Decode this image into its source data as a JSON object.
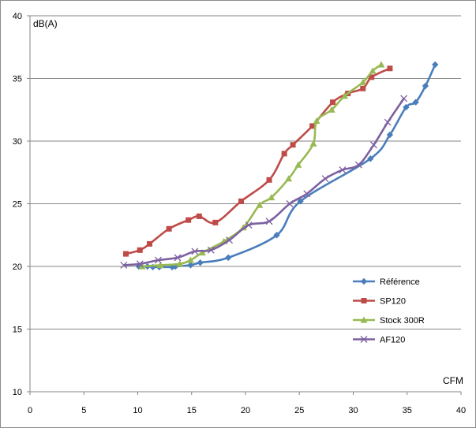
{
  "chart_data": {
    "type": "line",
    "title": "",
    "xlabel": "CFM",
    "ylabel": "dB(A)",
    "xlim": [
      0,
      40
    ],
    "ylim": [
      10,
      40
    ],
    "x_ticks": [
      0,
      5,
      10,
      15,
      20,
      25,
      30,
      35,
      40
    ],
    "y_ticks": [
      10,
      15,
      20,
      25,
      30,
      35,
      40
    ],
    "grid": "horizontal",
    "legend_position": "right",
    "series": [
      {
        "name": "Référence",
        "color": "#4a7ebb",
        "marker": "diamond",
        "points": [
          [
            10.1,
            20.0
          ],
          [
            10.9,
            20.0
          ],
          [
            11.4,
            19.95
          ],
          [
            12.0,
            19.95
          ],
          [
            13.2,
            19.95
          ],
          [
            13.5,
            20.0
          ],
          [
            14.9,
            20.1
          ],
          [
            15.8,
            20.3
          ],
          [
            18.4,
            20.7
          ],
          [
            22.9,
            22.5
          ],
          [
            25.1,
            25.2
          ],
          [
            31.6,
            28.6
          ],
          [
            33.4,
            30.5
          ],
          [
            34.9,
            32.7
          ],
          [
            35.8,
            33.1
          ],
          [
            36.7,
            34.4
          ],
          [
            37.6,
            36.1
          ]
        ]
      },
      {
        "name": "SP120",
        "color": "#be4b48",
        "marker": "square",
        "points": [
          [
            8.9,
            21.0
          ],
          [
            10.2,
            21.3
          ],
          [
            11.1,
            21.8
          ],
          [
            12.9,
            23.0
          ],
          [
            14.7,
            23.7
          ],
          [
            15.7,
            24.0
          ],
          [
            17.2,
            23.5
          ],
          [
            19.6,
            25.2
          ],
          [
            22.2,
            26.9
          ],
          [
            23.6,
            29.0
          ],
          [
            24.4,
            29.7
          ],
          [
            26.2,
            31.2
          ],
          [
            28.1,
            33.1
          ],
          [
            29.5,
            33.8
          ],
          [
            30.9,
            34.2
          ],
          [
            31.7,
            35.1
          ],
          [
            33.4,
            35.8
          ]
        ]
      },
      {
        "name": "Stock 300R",
        "color": "#98b954",
        "marker": "triangle",
        "points": [
          [
            10.4,
            20.0
          ],
          [
            12.1,
            20.1
          ],
          [
            13.9,
            20.2
          ],
          [
            14.9,
            20.5
          ],
          [
            16.0,
            21.1
          ],
          [
            18.0,
            22.0
          ],
          [
            19.8,
            23.1
          ],
          [
            21.3,
            24.9
          ],
          [
            22.4,
            25.5
          ],
          [
            24.0,
            27.0
          ],
          [
            24.9,
            28.1
          ],
          [
            26.3,
            29.8
          ],
          [
            26.6,
            31.6
          ],
          [
            28.0,
            32.5
          ],
          [
            29.2,
            33.6
          ],
          [
            30.9,
            34.7
          ],
          [
            31.8,
            35.6
          ],
          [
            32.6,
            36.1
          ]
        ]
      },
      {
        "name": "AF120",
        "color": "#7d60a0",
        "marker": "x",
        "points": [
          [
            8.7,
            20.1
          ],
          [
            10.2,
            20.2
          ],
          [
            11.9,
            20.5
          ],
          [
            13.7,
            20.7
          ],
          [
            15.3,
            21.2
          ],
          [
            16.8,
            21.3
          ],
          [
            18.5,
            22.1
          ],
          [
            20.3,
            23.3
          ],
          [
            22.2,
            23.6
          ],
          [
            24.1,
            25.0
          ],
          [
            25.7,
            25.8
          ],
          [
            27.4,
            27.0
          ],
          [
            29.0,
            27.7
          ],
          [
            30.5,
            28.1
          ],
          [
            31.9,
            29.7
          ],
          [
            33.2,
            31.5
          ],
          [
            34.7,
            33.4
          ]
        ]
      }
    ]
  }
}
